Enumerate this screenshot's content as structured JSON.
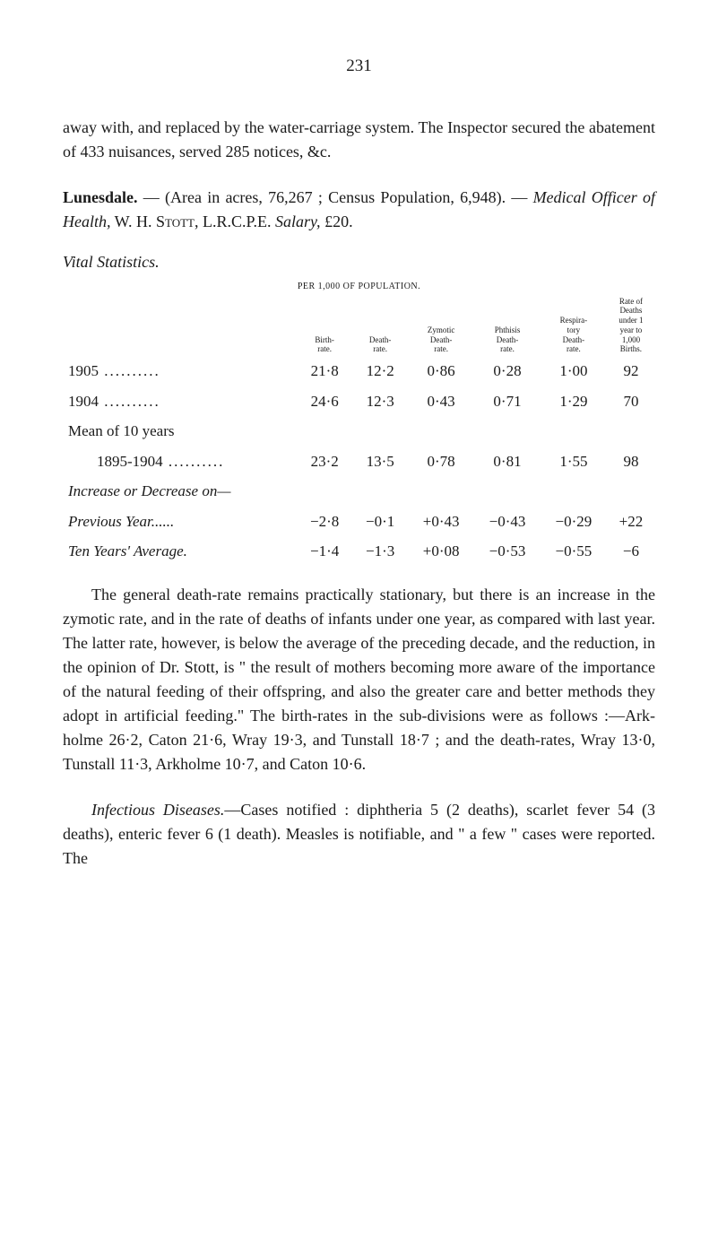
{
  "page_number": "231",
  "intro_para": "away with, and replaced by the water-carriage system. The Inspector secured the abatement of 433 nuisances, served 285 notices, &c.",
  "lunesdale": {
    "title": "Lunesdale.",
    "line": " — (Area in acres, 76,267 ; Census Population, 6,948). — ",
    "mo_label_italic": "Medical Officer of Health,",
    "mo_name": " W. H. ",
    "mo_surname": "Stott,",
    "qual": " L.R.C.P.E. ",
    "salary_label_italic": "Salary,",
    "salary_value": " £20."
  },
  "vital_title": "Vital Statistics.",
  "table": {
    "caption": "Per 1,000 of Population.",
    "headers": {
      "birth": "Birth-\nrate.",
      "death": "Death-\nrate.",
      "zymotic": "Zymotic\nDeath-\nrate.",
      "phthisis": "Phthisis\nDeath-\nrate.",
      "respira": "Respira-\ntory\nDeath-\nrate.",
      "rateof": "Rate of\nDeaths\nunder 1\nyear to\n1,000\nBirths."
    },
    "rows": [
      {
        "label": "1905",
        "birth": "21·8",
        "death": "12·2",
        "zymotic": "0·86",
        "phthisis": "0·28",
        "respira": "1·00",
        "rateof": "92"
      },
      {
        "label": "1904",
        "birth": "24·6",
        "death": "12·3",
        "zymotic": "0·43",
        "phthisis": "0·71",
        "respira": "1·29",
        "rateof": "70"
      }
    ],
    "mean_label": "Mean of 10 years",
    "mean_row": {
      "label": "1895-1904",
      "birth": "23·2",
      "death": "13·5",
      "zymotic": "0·78",
      "phthisis": "0·81",
      "respira": "1·55",
      "rateof": "98"
    },
    "incdec_label": "Increase or Decrease on—",
    "prev_row": {
      "label": "Previous Year",
      "birth": "−2·8",
      "death": "−0·1",
      "zymotic": "+0·43",
      "phthisis": "−0·43",
      "respira": "−0·29",
      "rateof": "+22"
    },
    "ten_row": {
      "label": "Ten Years' Average.",
      "birth": "−1·4",
      "death": "−1·3",
      "zymotic": "+0·08",
      "phthisis": "−0·53",
      "respira": "−0·55",
      "rateof": "−6"
    }
  },
  "body_para": "The general death-rate remains practically stationary, but there is an increase in the zymotic rate, and in the rate of deaths of infants under one year, as compared with last year. The latter rate, however, is below the average of the preceding decade, and the reduction, in the opinion of Dr. Stott, is \" the result of mothers becoming more aware of the importance of the natural feeding of their offspring, and also the greater care and better methods they adopt in artificial feeding.\" The birth-rates in the sub-divisions were as follows :—Ark­holme 26·2, Caton 21·6, Wray 19·3, and Tunstall 18·7 ; and the death-rates, Wray 13·0, Tunstall 11·3, Arkholme 10·7, and Caton 10·6.",
  "infectious": {
    "title_italic": "Infectious Diseases.",
    "text": "—Cases notified : diphtheria 5 (2 deaths), scarlet fever 54 (3 deaths), enteric fever 6 (1 death). Measles is notifiable, and \" a few \" cases were reported. The"
  }
}
